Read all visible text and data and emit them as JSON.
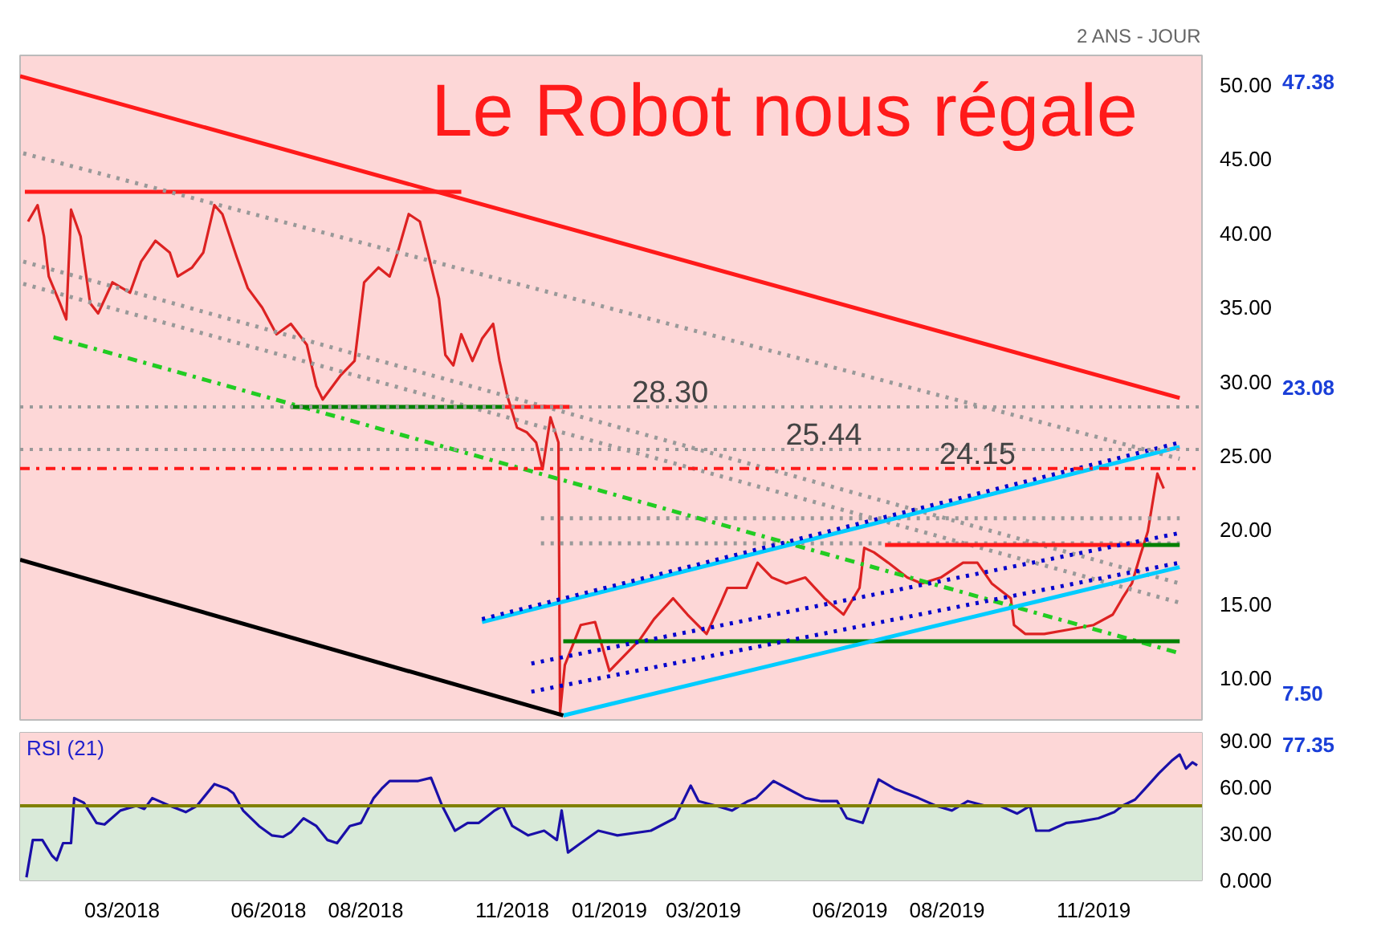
{
  "chart_data": [
    {
      "type": "line",
      "title": "Le Robot nous régale",
      "annotations": [
        "2 ANS - JOUR",
        "47.38",
        "23.08",
        "7.50"
      ],
      "xlim": [
        "2017-12-27",
        "2020-01-08"
      ],
      "ylim": [
        7.2,
        52
      ],
      "yticks": [
        {
          "value": 10,
          "label": "10.00"
        },
        {
          "value": 15,
          "label": "15.00"
        },
        {
          "value": 20,
          "label": "20.00"
        },
        {
          "value": 25,
          "label": "25.00"
        },
        {
          "value": 30,
          "label": "30.00"
        },
        {
          "value": 35,
          "label": "35.00"
        },
        {
          "value": 40,
          "label": "40.00"
        },
        {
          "value": 45,
          "label": "45.00"
        },
        {
          "value": 50,
          "label": "50.00"
        }
      ],
      "tick_labels": "y",
      "grid": false,
      "series": [
        {
          "color": "#dd2222",
          "line_style": "solid",
          "x": [
            "2018-01-01",
            "2018-01-07",
            "2018-01-11",
            "2018-01-14",
            "2018-01-21",
            "2018-01-25",
            "2018-01-28",
            "2018-02-03",
            "2018-02-09",
            "2018-02-14",
            "2018-02-23",
            "2018-03-06",
            "2018-03-13",
            "2018-03-22",
            "2018-03-31",
            "2018-04-05",
            "2018-04-14",
            "2018-04-21",
            "2018-04-28",
            "2018-05-03",
            "2018-05-12",
            "2018-05-19",
            "2018-05-28",
            "2018-06-06",
            "2018-06-15",
            "2018-06-25",
            "2018-07-01",
            "2018-07-05",
            "2018-07-16",
            "2018-07-25",
            "2018-07-31",
            "2018-08-09",
            "2018-08-16",
            "2018-08-21",
            "2018-08-28",
            "2018-09-04",
            "2018-09-09",
            "2018-09-16",
            "2018-09-20",
            "2018-09-25",
            "2018-09-30",
            "2018-10-07",
            "2018-10-13",
            "2018-10-20",
            "2018-10-24",
            "2018-10-29",
            "2018-11-04",
            "2018-11-10",
            "2018-11-16",
            "2018-11-20",
            "2018-11-25",
            "2018-11-30",
            "2018-12-01",
            "2018-12-04",
            "2018-12-14",
            "2018-12-23",
            "2019-01-01",
            "2019-01-10",
            "2019-01-20",
            "2019-01-29",
            "2019-02-10",
            "2019-02-19",
            "2019-03-03",
            "2019-03-12",
            "2019-03-16",
            "2019-03-28",
            "2019-04-04",
            "2019-04-13",
            "2019-04-22",
            "2019-05-04",
            "2019-05-16",
            "2019-05-28",
            "2019-06-07",
            "2019-06-10",
            "2019-06-16",
            "2019-06-25",
            "2019-07-07",
            "2019-07-16",
            "2019-07-28",
            "2019-08-11",
            "2019-08-20",
            "2019-08-29",
            "2019-09-10",
            "2019-09-12",
            "2019-09-19",
            "2019-10-01",
            "2019-10-17",
            "2019-11-01",
            "2019-11-13",
            "2019-11-19",
            "2019-11-25",
            "2019-11-30",
            "2019-12-05",
            "2019-12-11",
            "2019-12-15"
          ],
          "values": [
            40.8,
            41.9,
            39.8,
            37.1,
            35.3,
            34.2,
            41.6,
            39.8,
            35.3,
            34.6,
            36.7,
            36.0,
            38.1,
            39.5,
            38.7,
            37.1,
            37.7,
            38.7,
            41.9,
            41.3,
            38.4,
            36.3,
            35.0,
            33.2,
            33.9,
            32.5,
            29.7,
            28.8,
            30.4,
            31.4,
            36.7,
            37.7,
            37.1,
            38.7,
            41.3,
            40.8,
            38.7,
            35.6,
            31.8,
            31.1,
            33.2,
            31.4,
            32.9,
            33.9,
            31.4,
            29.0,
            26.9,
            26.6,
            25.9,
            24.1,
            27.6,
            25.9,
            7.7,
            10.9,
            13.6,
            13.8,
            10.5,
            11.5,
            12.6,
            14.0,
            15.4,
            14.3,
            13.0,
            15.1,
            16.1,
            16.1,
            17.8,
            16.8,
            16.4,
            16.8,
            15.4,
            14.3,
            16.1,
            18.8,
            18.5,
            17.8,
            16.8,
            16.4,
            16.8,
            17.8,
            17.8,
            16.4,
            15.4,
            13.6,
            13.0,
            13.0,
            13.3,
            13.6,
            14.3,
            15.4,
            16.4,
            18.2,
            19.9,
            23.8,
            22.8
          ]
        },
        {
          "color": "#ff1a1a",
          "line_style": "solid",
          "x": [
            "2017-12-27",
            "2019-12-25"
          ],
          "values": [
            50.6,
            28.9
          ]
        },
        {
          "color": "#ff1a1a",
          "line_style": "solid",
          "x": [
            "2017-12-30",
            "2018-09-30"
          ],
          "values": [
            42.8,
            42.8
          ]
        },
        {
          "color": "#999999",
          "line_style": "dotted",
          "x": [
            "2017-12-29",
            "2019-12-25"
          ],
          "values": [
            45.4,
            24.8
          ]
        },
        {
          "color": "#999999",
          "line_style": "dotted",
          "x": [
            "2017-12-29",
            "2019-12-25"
          ],
          "values": [
            38.1,
            16.4
          ]
        },
        {
          "color": "#999999",
          "line_style": "dotted",
          "x": [
            "2017-12-29",
            "2019-12-25"
          ],
          "values": [
            36.6,
            15.1
          ]
        },
        {
          "color": "#999999",
          "line_style": "dotted",
          "x": [
            "2018-11-19",
            "2019-12-25"
          ],
          "values": [
            20.8,
            20.8
          ]
        },
        {
          "color": "#999999",
          "line_style": "dotted",
          "x": [
            "2018-11-19",
            "2019-12-25"
          ],
          "values": [
            19.1,
            19.1
          ]
        },
        {
          "color": "#22cc22",
          "line_style": "dashed",
          "x": [
            "2018-01-17",
            "2019-12-25"
          ],
          "values": [
            33.0,
            11.7
          ]
        },
        {
          "color": "#008000",
          "line_style": "solid",
          "x": [
            "2018-06-15",
            "2018-10-27"
          ],
          "values": [
            28.3,
            28.3
          ]
        },
        {
          "color": "#ff1a1a",
          "line_style": "solid",
          "x": [
            "2018-10-27",
            "2018-12-07"
          ],
          "values": [
            28.3,
            28.3
          ]
        },
        {
          "color": "#008000",
          "line_style": "solid",
          "x": [
            "2018-12-03",
            "2019-12-25"
          ],
          "values": [
            12.5,
            12.5
          ]
        },
        {
          "color": "#ff1a1a",
          "line_style": "solid",
          "x": [
            "2019-06-23",
            "2019-12-02"
          ],
          "values": [
            19.0,
            19.0
          ]
        },
        {
          "color": "#008000",
          "line_style": "solid",
          "x": [
            "2019-12-02",
            "2019-12-25"
          ],
          "values": [
            19.0,
            19.0
          ]
        },
        {
          "color": "#00ccff",
          "line_style": "solid",
          "x": [
            "2018-10-13",
            "2019-12-25"
          ],
          "values": [
            13.8,
            25.6
          ]
        },
        {
          "color": "#0000cc",
          "line_style": "dotted",
          "x": [
            "2018-10-13",
            "2019-12-25"
          ],
          "values": [
            14.0,
            25.9
          ]
        },
        {
          "color": "#0000cc",
          "line_style": "dotted",
          "x": [
            "2018-11-13",
            "2019-12-25"
          ],
          "values": [
            11.0,
            19.8
          ]
        },
        {
          "color": "#0000cc",
          "line_style": "dotted",
          "x": [
            "2018-11-13",
            "2019-12-25"
          ],
          "values": [
            9.1,
            17.8
          ]
        },
        {
          "color": "#00ccff",
          "line_style": "solid",
          "x": [
            "2018-12-03",
            "2019-12-25"
          ],
          "values": [
            7.5,
            17.5
          ]
        },
        {
          "color": "#000000",
          "line_style": "solid",
          "x": [
            "2017-12-27",
            "2018-12-03"
          ],
          "values": [
            18.0,
            7.5
          ]
        }
      ],
      "ref_lines": [
        {
          "axis": "y",
          "value": 28.3,
          "label": "28.30",
          "color": "#999999",
          "line_style": "dotted"
        },
        {
          "axis": "y",
          "value": 25.44,
          "label": "25.44",
          "color": "#999999",
          "line_style": "dotted"
        },
        {
          "axis": "y",
          "value": 24.15,
          "label": "24.15",
          "color": "#ff1a1a",
          "line_style": "dashed"
        }
      ]
    },
    {
      "type": "line",
      "title": "RSI (21)",
      "annotations": [
        "77.35"
      ],
      "xlim": [
        "2017-12-27",
        "2020-01-08"
      ],
      "xticks": [
        {
          "value": "2018-03-01",
          "label": "03/2018"
        },
        {
          "value": "2018-06-01",
          "label": "06/2018"
        },
        {
          "value": "2018-08-01",
          "label": "08/2018"
        },
        {
          "value": "2018-11-01",
          "label": "11/2018"
        },
        {
          "value": "2019-01-01",
          "label": "01/2019"
        },
        {
          "value": "2019-03-01",
          "label": "03/2019"
        },
        {
          "value": "2019-06-01",
          "label": "06/2019"
        },
        {
          "value": "2019-08-01",
          "label": "08/2019"
        },
        {
          "value": "2019-11-01",
          "label": "11/2019"
        }
      ],
      "ylim": [
        0,
        95
      ],
      "yticks": [
        {
          "value": 0,
          "label": "0.000"
        },
        {
          "value": 30,
          "label": "30.00"
        },
        {
          "value": 60,
          "label": "60.00"
        },
        {
          "value": 90,
          "label": "90.00"
        }
      ],
      "grid": false,
      "series": [
        {
          "color": "#1a0fa8",
          "line_style": "solid",
          "x": [
            "2017-12-31",
            "2018-01-04",
            "2018-01-10",
            "2018-01-16",
            "2018-01-19",
            "2018-01-23",
            "2018-01-28",
            "2018-01-30",
            "2018-02-05",
            "2018-02-13",
            "2018-02-18",
            "2018-02-28",
            "2018-03-10",
            "2018-03-15",
            "2018-03-20",
            "2018-03-31",
            "2018-04-10",
            "2018-04-17",
            "2018-04-28",
            "2018-05-06",
            "2018-05-10",
            "2018-05-16",
            "2018-05-26",
            "2018-06-03",
            "2018-06-10",
            "2018-06-15",
            "2018-06-23",
            "2018-07-01",
            "2018-07-08",
            "2018-07-14",
            "2018-07-22",
            "2018-07-29",
            "2018-08-06",
            "2018-08-11",
            "2018-08-16",
            "2018-08-26",
            "2018-09-03",
            "2018-09-11",
            "2018-09-18",
            "2018-09-26",
            "2018-10-04",
            "2018-10-11",
            "2018-10-21",
            "2018-10-26",
            "2018-11-01",
            "2018-11-11",
            "2018-11-21",
            "2018-11-29",
            "2018-12-02",
            "2018-12-06",
            "2018-12-14",
            "2018-12-25",
            "2019-01-06",
            "2019-01-27",
            "2019-02-11",
            "2019-02-21",
            "2019-02-26",
            "2019-03-09",
            "2019-03-19",
            "2019-03-29",
            "2019-04-03",
            "2019-04-14",
            "2019-04-23",
            "2019-05-04",
            "2019-05-14",
            "2019-05-24",
            "2019-05-30",
            "2019-06-09",
            "2019-06-19",
            "2019-06-29",
            "2019-07-14",
            "2019-07-25",
            "2019-08-04",
            "2019-08-14",
            "2019-08-25",
            "2019-09-03",
            "2019-09-14",
            "2019-09-22",
            "2019-09-26",
            "2019-10-04",
            "2019-10-15",
            "2019-10-24",
            "2019-11-04",
            "2019-11-14",
            "2019-11-19",
            "2019-11-27",
            "2019-12-05",
            "2019-12-12",
            "2019-12-20",
            "2019-12-25",
            "2019-12-29",
            "2020-01-02",
            "2020-01-05"
          ],
          "values": [
            2,
            26,
            26,
            16,
            13,
            24,
            24,
            53,
            50,
            37,
            36,
            45,
            48,
            46,
            53,
            48,
            44,
            48,
            62,
            59,
            56,
            45,
            35,
            29,
            28,
            31,
            40,
            35,
            26,
            24,
            35,
            37,
            53,
            59,
            64,
            64,
            64,
            66,
            48,
            32,
            37,
            37,
            45,
            48,
            35,
            29,
            32,
            26,
            45,
            18,
            24,
            32,
            29,
            32,
            40,
            61,
            51,
            48,
            45,
            51,
            53,
            64,
            59,
            53,
            51,
            51,
            40,
            37,
            65,
            59,
            53,
            48,
            45,
            51,
            48,
            48,
            43,
            48,
            32,
            32,
            37,
            38,
            40,
            44,
            48,
            52,
            61,
            69,
            77,
            81,
            72,
            76,
            74
          ]
        }
      ],
      "ref_lines": [
        {
          "axis": "y",
          "value": 48,
          "color": "#808000",
          "line_style": "solid"
        }
      ],
      "bands": [
        {
          "axis": "y",
          "from": 48,
          "to": 95,
          "color": "#fdd7d7"
        },
        {
          "axis": "y",
          "from": 0,
          "to": 48,
          "color": "#d9ead9"
        }
      ]
    }
  ]
}
